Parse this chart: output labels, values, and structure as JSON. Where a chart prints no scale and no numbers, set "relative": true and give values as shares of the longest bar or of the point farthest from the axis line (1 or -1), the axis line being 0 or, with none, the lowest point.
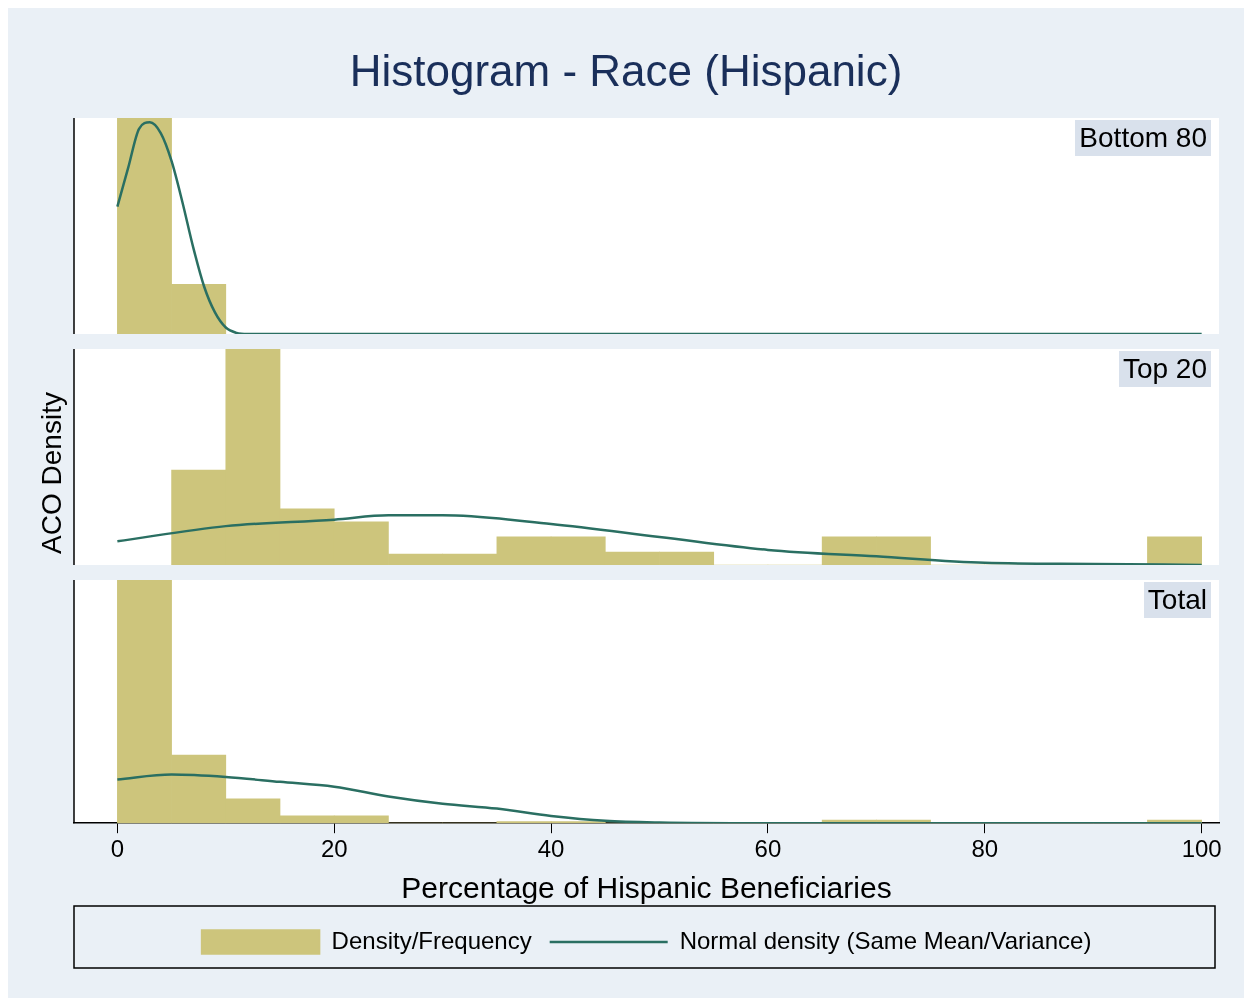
{
  "chart_data": [
    {
      "type": "histogram",
      "title": "Histogram - Race (Hispanic)",
      "subtitle": "Bottom 80",
      "relative": true,
      "xlim": [
        -4,
        101.6
      ],
      "tick_labels": false,
      "grid": false,
      "series": [
        {
          "color": "#cdc57c",
          "bins": [
            0,
            5,
            10
          ],
          "values": [
            1,
            0.23
          ]
        },
        {
          "type": "line",
          "color": "#2a6f62",
          "x": [
            0,
            1,
            2,
            3,
            4,
            5,
            6,
            7,
            8,
            9,
            10,
            11,
            12,
            100
          ],
          "values": [
            0.59,
            0.77,
            0.95,
            0.98,
            0.93,
            0.8,
            0.61,
            0.4,
            0.22,
            0.1,
            0.03,
            0.005,
            0,
            0
          ]
        }
      ]
    },
    {
      "type": "histogram",
      "subtitle": "Top 20",
      "ylabel": "ACO Density",
      "relative": true,
      "xlim": [
        -4,
        101.6
      ],
      "tick_labels": false,
      "grid": false,
      "series": [
        {
          "color": "#cdc57c",
          "bins": [
            5,
            10,
            15,
            20,
            25,
            30,
            35,
            40,
            45,
            50,
            55,
            60,
            65,
            70,
            75,
            80,
            85,
            90,
            95,
            100
          ],
          "values": [
            0.44,
            1,
            0.26,
            0.2,
            0.05,
            0.05,
            0.13,
            0.13,
            0.06,
            0.06,
            0,
            0,
            0.13,
            0.13,
            0,
            0,
            0,
            0,
            0.13
          ]
        },
        {
          "type": "line",
          "color": "#2a6f62",
          "x": [
            0,
            10,
            20,
            25,
            30,
            40,
            50,
            60,
            70,
            80,
            90,
            100
          ],
          "values": [
            0.11,
            0.18,
            0.21,
            0.23,
            0.23,
            0.19,
            0.13,
            0.07,
            0.04,
            0.01,
            0.005,
            0
          ]
        }
      ]
    },
    {
      "type": "histogram",
      "subtitle": "Total",
      "xlabel": "Percentage of Hispanic Beneficiaries",
      "relative": true,
      "xlim": [
        -4,
        101.6
      ],
      "xticks": [
        0,
        20,
        40,
        60,
        80,
        100
      ],
      "tick_labels": "x",
      "grid": false,
      "legend": "bottom",
      "series": [
        {
          "name": "Density/Frequency",
          "color": "#cdc57c",
          "bins": [
            0,
            5,
            10,
            15,
            20,
            25,
            30,
            35,
            40,
            45,
            50,
            55,
            60,
            65,
            70,
            75,
            80,
            85,
            90,
            95,
            100
          ],
          "values": [
            1,
            0.28,
            0.1,
            0.03,
            0.03,
            0,
            0,
            0.007,
            0.007,
            0,
            0,
            0,
            0,
            0.013,
            0.013,
            0,
            0,
            0,
            0,
            0.013
          ]
        },
        {
          "type": "line",
          "name": "Normal density (Same Mean/Variance)",
          "color": "#2a6f62",
          "x": [
            0,
            5,
            10,
            15,
            20,
            25,
            30,
            35,
            40,
            45,
            50,
            60,
            100
          ],
          "values": [
            0.18,
            0.2,
            0.19,
            0.17,
            0.15,
            0.11,
            0.08,
            0.06,
            0.03,
            0.01,
            0.003,
            0,
            0
          ]
        }
      ]
    }
  ]
}
